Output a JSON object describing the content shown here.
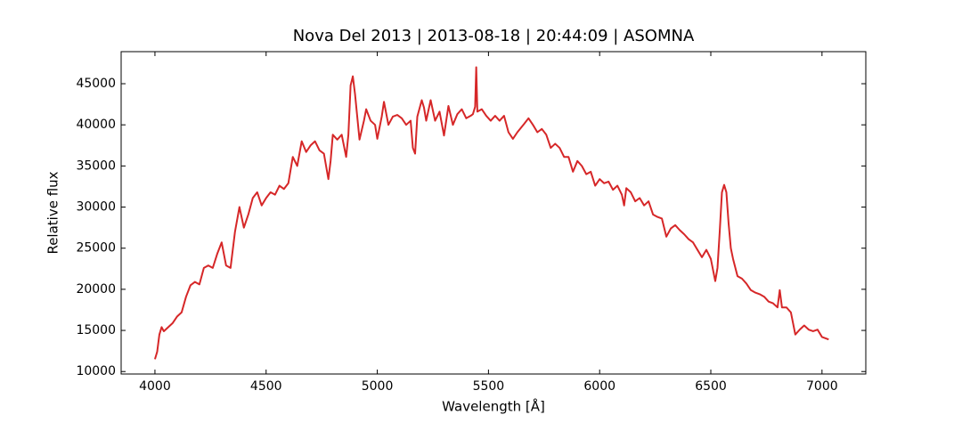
{
  "chart_data": {
    "type": "line",
    "title": "Nova Del 2013 | 2013-08-18 | 20:44:09 | ASOMNA",
    "x_label": "Wavelength [Å]",
    "y_label": "Relative flux",
    "x": [
      4000,
      4010,
      4020,
      4030,
      4040,
      4060,
      4080,
      4100,
      4120,
      4140,
      4160,
      4180,
      4200,
      4220,
      4240,
      4260,
      4280,
      4300,
      4320,
      4340,
      4360,
      4380,
      4400,
      4420,
      4440,
      4460,
      4480,
      4500,
      4520,
      4540,
      4560,
      4580,
      4600,
      4620,
      4640,
      4660,
      4680,
      4700,
      4720,
      4740,
      4760,
      4780,
      4790,
      4800,
      4820,
      4840,
      4860,
      4870,
      4880,
      4890,
      4900,
      4920,
      4940,
      4950,
      4970,
      4990,
      5000,
      5020,
      5030,
      5050,
      5070,
      5090,
      5110,
      5130,
      5150,
      5160,
      5170,
      5180,
      5200,
      5210,
      5220,
      5240,
      5260,
      5280,
      5300,
      5320,
      5340,
      5360,
      5380,
      5400,
      5420,
      5430,
      5440,
      5445,
      5450,
      5470,
      5490,
      5510,
      5530,
      5550,
      5570,
      5590,
      5610,
      5630,
      5660,
      5680,
      5700,
      5720,
      5740,
      5760,
      5780,
      5800,
      5820,
      5840,
      5860,
      5880,
      5900,
      5920,
      5940,
      5960,
      5980,
      6000,
      6020,
      6040,
      6060,
      6080,
      6100,
      6110,
      6120,
      6140,
      6160,
      6180,
      6200,
      6220,
      6240,
      6260,
      6280,
      6300,
      6320,
      6340,
      6360,
      6380,
      6400,
      6420,
      6440,
      6460,
      6480,
      6500,
      6520,
      6530,
      6540,
      6550,
      6560,
      6570,
      6580,
      6590,
      6600,
      6620,
      6640,
      6660,
      6680,
      6700,
      6720,
      6740,
      6760,
      6780,
      6800,
      6810,
      6820,
      6840,
      6860,
      6880,
      6900,
      6920,
      6940,
      6960,
      6980,
      7000,
      7030
    ],
    "series": [
      {
        "name": "Nova Del 2013",
        "color": "#d62728",
        "values": [
          11500,
          12400,
          14500,
          15400,
          14900,
          15400,
          15900,
          16700,
          17200,
          19100,
          20500,
          20900,
          20600,
          22600,
          22900,
          22600,
          24300,
          25700,
          22900,
          22600,
          27000,
          30000,
          27500,
          29100,
          31100,
          31800,
          30200,
          31100,
          31800,
          31500,
          32600,
          32200,
          32900,
          36100,
          35000,
          38000,
          36700,
          37500,
          38000,
          36900,
          36500,
          33400,
          35600,
          38800,
          38200,
          38800,
          36100,
          38800,
          44800,
          45900,
          43700,
          38200,
          40500,
          41900,
          40500,
          40000,
          38300,
          41000,
          42800,
          40000,
          41000,
          41200,
          40800,
          40000,
          40500,
          37200,
          36500,
          41000,
          43000,
          42100,
          40500,
          43000,
          40500,
          41600,
          38700,
          42300,
          40000,
          41300,
          41900,
          40800,
          41100,
          41300,
          42200,
          47000,
          41600,
          41900,
          41100,
          40500,
          41100,
          40500,
          41100,
          39100,
          38300,
          39100,
          40100,
          40800,
          40000,
          39100,
          39500,
          38800,
          37200,
          37700,
          37200,
          36100,
          36100,
          34300,
          35600,
          35000,
          34000,
          34300,
          32600,
          33400,
          32900,
          33100,
          32100,
          32600,
          31500,
          30200,
          32300,
          31800,
          30700,
          31100,
          30200,
          30700,
          29100,
          28800,
          28600,
          26400,
          27400,
          27800,
          27200,
          26700,
          26100,
          25700,
          24800,
          23900,
          24800,
          23700,
          21000,
          22600,
          27000,
          31800,
          32700,
          31800,
          28000,
          25000,
          23700,
          21600,
          21300,
          20700,
          19900,
          19600,
          19400,
          19100,
          18500,
          18300,
          17800,
          19900,
          17800,
          17800,
          17200,
          14500,
          15100,
          15600,
          15100,
          14900,
          15100,
          14200,
          13900
        ]
      }
    ],
    "xlim": [
      3848,
      7197
    ],
    "ylim": [
      9700,
      48900
    ],
    "xticks": [
      4000,
      4500,
      5000,
      5500,
      6000,
      6500,
      7000
    ],
    "yticks": [
      10000,
      15000,
      20000,
      25000,
      30000,
      35000,
      40000,
      45000
    ]
  }
}
